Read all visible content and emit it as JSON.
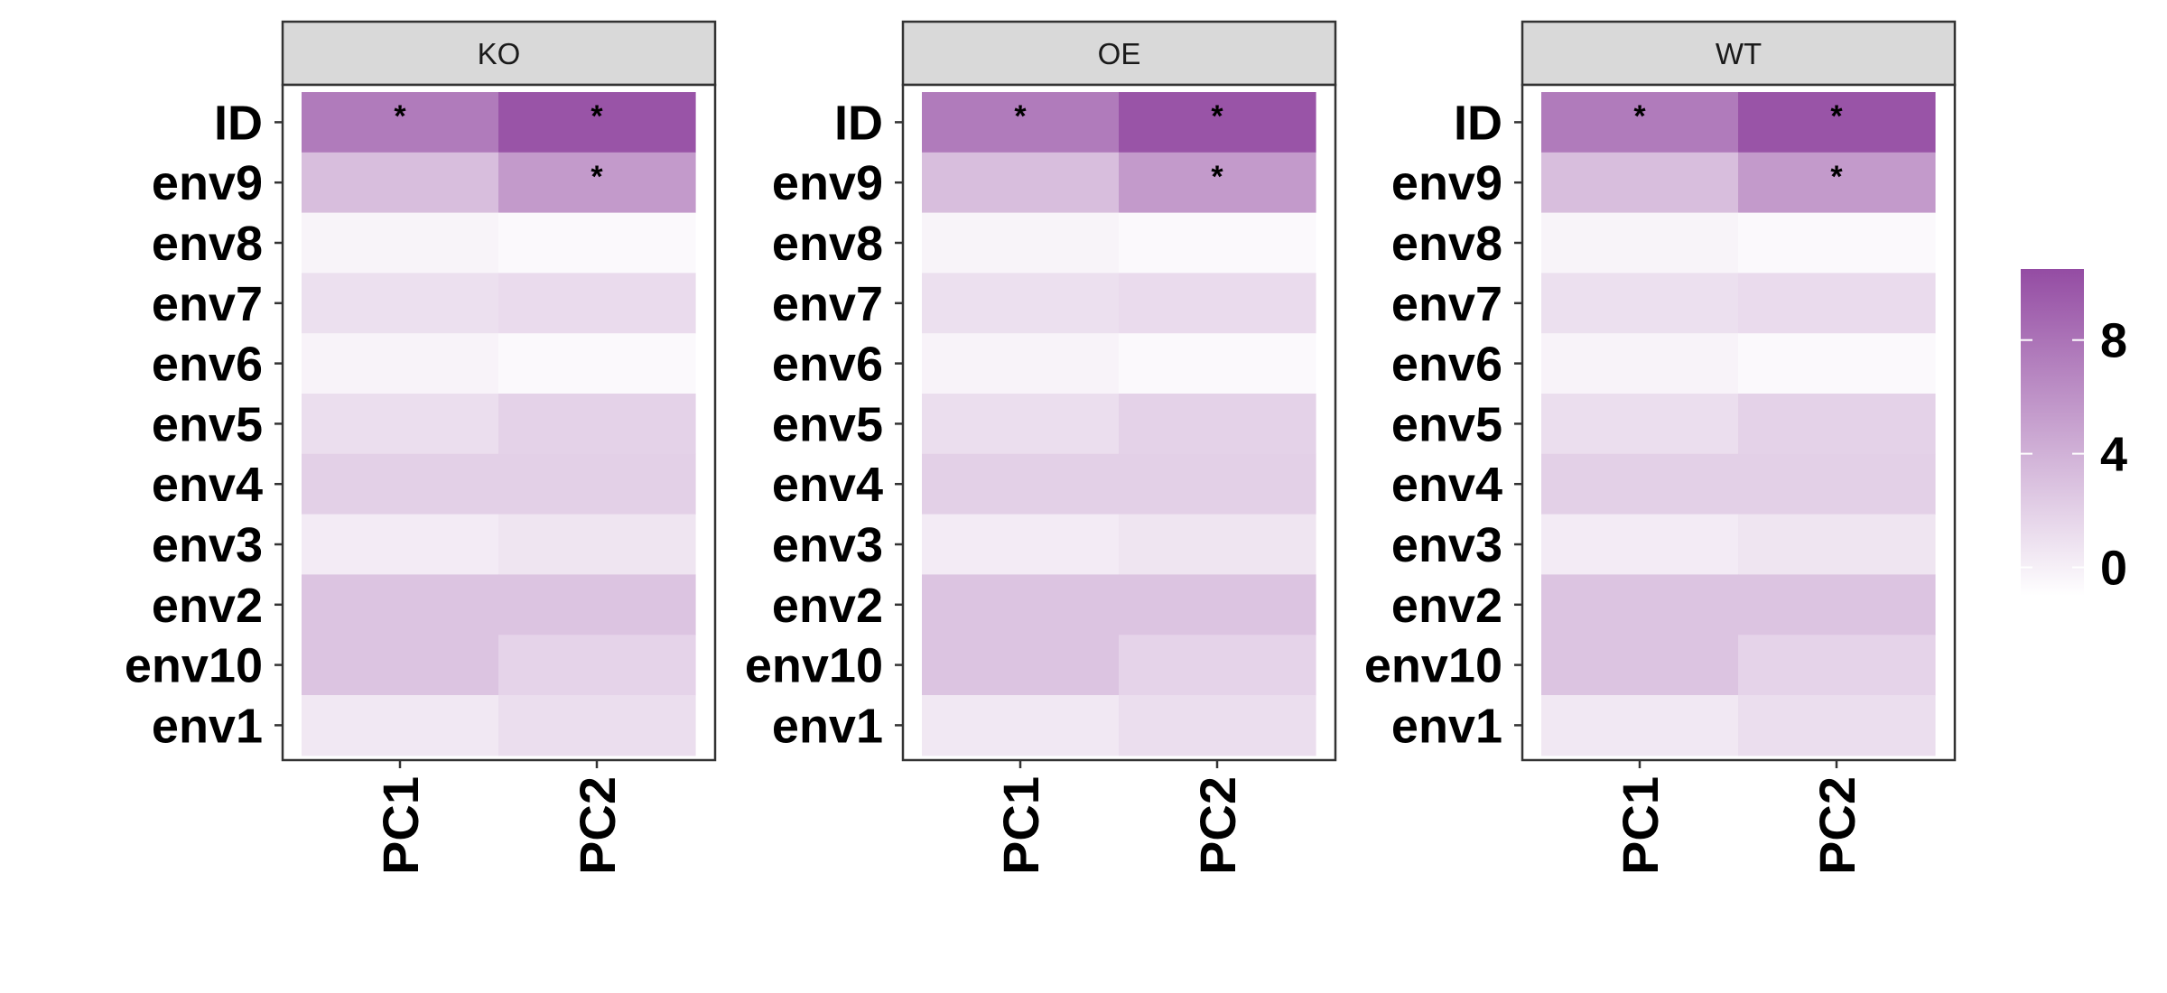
{
  "chart_data": {
    "type": "heatmap",
    "x_categories": [
      "PC1",
      "PC2"
    ],
    "y_categories": [
      "ID",
      "env9",
      "env8",
      "env7",
      "env6",
      "env5",
      "env4",
      "env3",
      "env2",
      "env10",
      "env1"
    ],
    "color_scale": {
      "low_color": "#ffffff",
      "high_color": "#944ca3",
      "min": -1,
      "max": 10.5,
      "breaks": [
        0,
        4,
        8
      ],
      "break_labels": [
        "0",
        "4",
        "8"
      ]
    },
    "significance_marker": "*",
    "panels": [
      {
        "facet": "KO",
        "values": {
          "ID": [
            7.5,
            10.0
          ],
          "env9": [
            3.2,
            5.5
          ],
          "env8": [
            -0.3,
            -0.6
          ],
          "env7": [
            1.0,
            1.3
          ],
          "env6": [
            -0.2,
            -0.6
          ],
          "env5": [
            1.1,
            1.9
          ],
          "env4": [
            2.0,
            2.0
          ],
          "env3": [
            0.3,
            0.7
          ],
          "env2": [
            2.8,
            2.8
          ],
          "env10": [
            2.8,
            1.8
          ],
          "env1": [
            0.5,
            1.1
          ]
        },
        "significant": {
          "ID": [
            true,
            true
          ],
          "env9": [
            false,
            true
          ]
        }
      },
      {
        "facet": "OE",
        "values": {
          "ID": [
            7.5,
            10.0
          ],
          "env9": [
            3.2,
            5.5
          ],
          "env8": [
            -0.3,
            -0.6
          ],
          "env7": [
            1.0,
            1.3
          ],
          "env6": [
            -0.2,
            -0.6
          ],
          "env5": [
            1.1,
            1.9
          ],
          "env4": [
            2.0,
            2.0
          ],
          "env3": [
            0.3,
            0.7
          ],
          "env2": [
            2.8,
            2.8
          ],
          "env10": [
            2.8,
            1.8
          ],
          "env1": [
            0.5,
            1.1
          ]
        },
        "significant": {
          "ID": [
            true,
            true
          ],
          "env9": [
            false,
            true
          ]
        }
      },
      {
        "facet": "WT",
        "values": {
          "ID": [
            7.5,
            10.0
          ],
          "env9": [
            3.2,
            5.5
          ],
          "env8": [
            -0.3,
            -0.6
          ],
          "env7": [
            1.0,
            1.3
          ],
          "env6": [
            -0.2,
            -0.6
          ],
          "env5": [
            1.1,
            1.9
          ],
          "env4": [
            2.0,
            2.0
          ],
          "env3": [
            0.3,
            0.7
          ],
          "env2": [
            2.8,
            2.8
          ],
          "env10": [
            2.8,
            1.8
          ],
          "env1": [
            0.5,
            1.1
          ]
        },
        "significant": {
          "ID": [
            true,
            true
          ],
          "env9": [
            false,
            true
          ]
        }
      }
    ],
    "legend": {
      "position": "right",
      "title": ""
    },
    "grid": false
  }
}
